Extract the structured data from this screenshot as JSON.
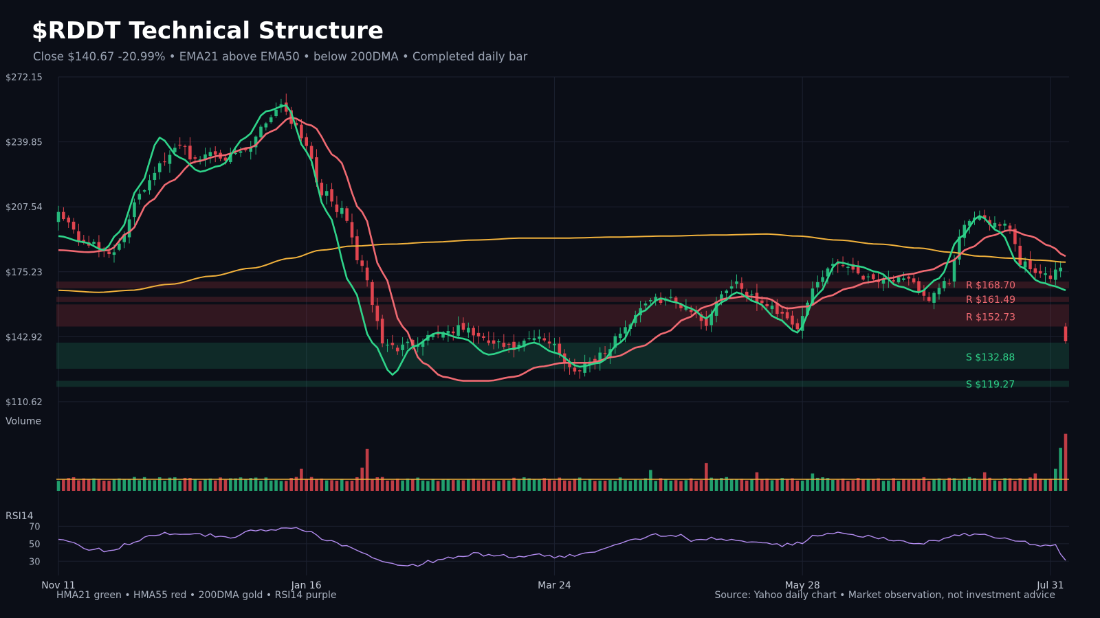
{
  "header": {
    "title": "$RDDT Technical Structure",
    "subtitle": "Close $140.67  -20.99%  •  EMA21 above EMA50 • below 200DMA  •  Completed daily bar"
  },
  "panels": {
    "volume_label": "Volume",
    "rsi_label": "RSI14"
  },
  "footer": {
    "legend_text": "HMA21 green • HMA55 red • 200DMA gold  •  RSI14 purple",
    "source_text": "Source: Yahoo daily chart • Market observation, not investment advice"
  },
  "colors": {
    "background": "#0b0e17",
    "grid": "#1c2130",
    "up": "#26b97c",
    "down": "#e0454f",
    "hma21": "#2fd48a",
    "hma55": "#f06a72",
    "dma200": "#f2b23c",
    "rsi": "#b38cf0",
    "resistance_label": "#f06a72",
    "support_label": "#2fd48a",
    "volume_avg": "#f2b23c"
  },
  "chart_data": {
    "type": "candlestick",
    "title": "$RDDT Technical Structure",
    "x_labels": [
      "Nov 11",
      "Jan 16",
      "Mar 24",
      "May 28",
      "Jul 31"
    ],
    "x_label_bar_index": [
      0,
      49,
      98,
      147,
      196
    ],
    "y_ticks": [
      "$272.15",
      "$239.85",
      "$207.54",
      "$175.23",
      "$142.92",
      "$110.62"
    ],
    "y_tick_values": [
      272.15,
      239.85,
      207.54,
      175.23,
      142.92,
      110.62
    ],
    "ylim": [
      110.62,
      272.15
    ],
    "rsi_ticks": [
      70,
      50,
      30
    ],
    "rsi_ylim": [
      20,
      75
    ],
    "close_anchors": [
      [
        0,
        205
      ],
      [
        5,
        190
      ],
      [
        10,
        185
      ],
      [
        12,
        188
      ],
      [
        16,
        215
      ],
      [
        20,
        228
      ],
      [
        22,
        232
      ],
      [
        24,
        240
      ],
      [
        27,
        230
      ],
      [
        30,
        235
      ],
      [
        34,
        232
      ],
      [
        38,
        236
      ],
      [
        40,
        248
      ],
      [
        44,
        258
      ],
      [
        47,
        248
      ],
      [
        49,
        238
      ],
      [
        52,
        215
      ],
      [
        56,
        205
      ],
      [
        60,
        178
      ],
      [
        62,
        160
      ],
      [
        64,
        140
      ],
      [
        67,
        137
      ],
      [
        70,
        140
      ],
      [
        75,
        145
      ],
      [
        80,
        147
      ],
      [
        85,
        140
      ],
      [
        90,
        137
      ],
      [
        94,
        142
      ],
      [
        98,
        140
      ],
      [
        100,
        130
      ],
      [
        102,
        125
      ],
      [
        104,
        130
      ],
      [
        108,
        135
      ],
      [
        112,
        148
      ],
      [
        116,
        160
      ],
      [
        120,
        162
      ],
      [
        124,
        158
      ],
      [
        128,
        150
      ],
      [
        131,
        165
      ],
      [
        134,
        170
      ],
      [
        137,
        162
      ],
      [
        140,
        158
      ],
      [
        143,
        155
      ],
      [
        146,
        148
      ],
      [
        150,
        170
      ],
      [
        153,
        180
      ],
      [
        156,
        178
      ],
      [
        160,
        172
      ],
      [
        164,
        172
      ],
      [
        168,
        170
      ],
      [
        172,
        162
      ],
      [
        176,
        170
      ],
      [
        178,
        192
      ],
      [
        180,
        202
      ],
      [
        183,
        200
      ],
      [
        186,
        200
      ],
      [
        188,
        198
      ],
      [
        190,
        180
      ],
      [
        194,
        175
      ],
      [
        196,
        172
      ],
      [
        198,
        177
      ],
      [
        199,
        140.67
      ]
    ],
    "hma21_anchors": [
      [
        0,
        193
      ],
      [
        5,
        190
      ],
      [
        9,
        186
      ],
      [
        12,
        195
      ],
      [
        16,
        218
      ],
      [
        20,
        242
      ],
      [
        24,
        232
      ],
      [
        28,
        225
      ],
      [
        32,
        228
      ],
      [
        37,
        242
      ],
      [
        41,
        255
      ],
      [
        45,
        258
      ],
      [
        49,
        235
      ],
      [
        53,
        205
      ],
      [
        58,
        168
      ],
      [
        62,
        140
      ],
      [
        66,
        124
      ],
      [
        70,
        138
      ],
      [
        75,
        145
      ],
      [
        80,
        142
      ],
      [
        85,
        134
      ],
      [
        90,
        137
      ],
      [
        94,
        140
      ],
      [
        98,
        135
      ],
      [
        103,
        128
      ],
      [
        107,
        130
      ],
      [
        111,
        140
      ],
      [
        115,
        155
      ],
      [
        119,
        162
      ],
      [
        122,
        160
      ],
      [
        125,
        157
      ],
      [
        128,
        152
      ],
      [
        131,
        160
      ],
      [
        134,
        165
      ],
      [
        138,
        160
      ],
      [
        142,
        152
      ],
      [
        146,
        145
      ],
      [
        150,
        164
      ],
      [
        154,
        180
      ],
      [
        158,
        178
      ],
      [
        162,
        175
      ],
      [
        166,
        168
      ],
      [
        170,
        165
      ],
      [
        174,
        172
      ],
      [
        178,
        192
      ],
      [
        182,
        203
      ],
      [
        186,
        195
      ],
      [
        190,
        178
      ],
      [
        194,
        170
      ],
      [
        197,
        168
      ],
      [
        199,
        166
      ]
    ],
    "hma55_anchors": [
      [
        0,
        186
      ],
      [
        6,
        185
      ],
      [
        10,
        186
      ],
      [
        14,
        195
      ],
      [
        18,
        210
      ],
      [
        22,
        220
      ],
      [
        27,
        230
      ],
      [
        32,
        233
      ],
      [
        38,
        237
      ],
      [
        42,
        245
      ],
      [
        46,
        252
      ],
      [
        50,
        248
      ],
      [
        55,
        232
      ],
      [
        60,
        205
      ],
      [
        64,
        175
      ],
      [
        68,
        148
      ],
      [
        72,
        130
      ],
      [
        76,
        123
      ],
      [
        80,
        121
      ],
      [
        85,
        121
      ],
      [
        90,
        123
      ],
      [
        95,
        128
      ],
      [
        100,
        130
      ],
      [
        105,
        130
      ],
      [
        110,
        133
      ],
      [
        115,
        138
      ],
      [
        120,
        145
      ],
      [
        124,
        152
      ],
      [
        128,
        158
      ],
      [
        132,
        162
      ],
      [
        136,
        163
      ],
      [
        140,
        162
      ],
      [
        144,
        157
      ],
      [
        148,
        158
      ],
      [
        152,
        163
      ],
      [
        156,
        167
      ],
      [
        160,
        170
      ],
      [
        164,
        172
      ],
      [
        168,
        174
      ],
      [
        172,
        176
      ],
      [
        176,
        180
      ],
      [
        180,
        187
      ],
      [
        184,
        193
      ],
      [
        188,
        196
      ],
      [
        192,
        193
      ],
      [
        196,
        188
      ],
      [
        199,
        183
      ]
    ],
    "dma200_anchors": [
      [
        0,
        166
      ],
      [
        8,
        165
      ],
      [
        14,
        166
      ],
      [
        22,
        169
      ],
      [
        30,
        173
      ],
      [
        38,
        177
      ],
      [
        46,
        182
      ],
      [
        52,
        186
      ],
      [
        58,
        188
      ],
      [
        66,
        189
      ],
      [
        74,
        190
      ],
      [
        82,
        191
      ],
      [
        92,
        192
      ],
      [
        100,
        192
      ],
      [
        110,
        192.5
      ],
      [
        120,
        193
      ],
      [
        130,
        193.5
      ],
      [
        140,
        194
      ],
      [
        146,
        193
      ],
      [
        154,
        191
      ],
      [
        162,
        189
      ],
      [
        170,
        187
      ],
      [
        176,
        185
      ],
      [
        182,
        183
      ],
      [
        188,
        182
      ],
      [
        194,
        181
      ],
      [
        199,
        180
      ]
    ],
    "rsi_anchors": [
      [
        0,
        55
      ],
      [
        6,
        44
      ],
      [
        10,
        42
      ],
      [
        14,
        50
      ],
      [
        18,
        60
      ],
      [
        22,
        62
      ],
      [
        26,
        62
      ],
      [
        30,
        60
      ],
      [
        34,
        58
      ],
      [
        38,
        64
      ],
      [
        42,
        66
      ],
      [
        46,
        68
      ],
      [
        50,
        62
      ],
      [
        54,
        52
      ],
      [
        58,
        45
      ],
      [
        62,
        35
      ],
      [
        66,
        28
      ],
      [
        70,
        25
      ],
      [
        74,
        30
      ],
      [
        78,
        35
      ],
      [
        82,
        38
      ],
      [
        86,
        37
      ],
      [
        90,
        35
      ],
      [
        94,
        37
      ],
      [
        98,
        35
      ],
      [
        102,
        36
      ],
      [
        106,
        42
      ],
      [
        110,
        50
      ],
      [
        114,
        56
      ],
      [
        118,
        60
      ],
      [
        122,
        60
      ],
      [
        126,
        53
      ],
      [
        130,
        56
      ],
      [
        134,
        55
      ],
      [
        138,
        50
      ],
      [
        142,
        48
      ],
      [
        146,
        50
      ],
      [
        150,
        60
      ],
      [
        154,
        62
      ],
      [
        158,
        60
      ],
      [
        162,
        56
      ],
      [
        166,
        52
      ],
      [
        170,
        50
      ],
      [
        174,
        55
      ],
      [
        178,
        60
      ],
      [
        182,
        60
      ],
      [
        186,
        57
      ],
      [
        190,
        52
      ],
      [
        194,
        48
      ],
      [
        197,
        47
      ],
      [
        199,
        31
      ]
    ],
    "volume_avg": 1.0,
    "volume_spikes": [
      [
        61,
        3.6
      ],
      [
        60,
        2.0
      ],
      [
        48,
        1.9
      ],
      [
        117,
        1.8
      ],
      [
        128,
        2.4
      ],
      [
        138,
        1.6
      ],
      [
        149,
        1.5
      ],
      [
        183,
        1.6
      ],
      [
        193,
        1.5
      ],
      [
        197,
        1.9
      ],
      [
        198,
        3.7
      ],
      [
        199,
        4.9
      ]
    ],
    "levels": [
      {
        "kind": "resistance",
        "label": "R $168.70",
        "price": 168.7,
        "low": 167.0,
        "high": 170.4
      },
      {
        "kind": "resistance",
        "label": "R $161.49",
        "price": 161.49,
        "low": 160.2,
        "high": 162.8
      },
      {
        "kind": "resistance",
        "label": "R $152.73",
        "price": 152.73,
        "low": 148.0,
        "high": 159.0
      },
      {
        "kind": "support",
        "label": "S $132.88",
        "price": 132.88,
        "low": 127.0,
        "high": 140.0
      },
      {
        "kind": "support",
        "label": "S $119.27",
        "price": 119.27,
        "low": 118.0,
        "high": 121.0
      }
    ]
  }
}
